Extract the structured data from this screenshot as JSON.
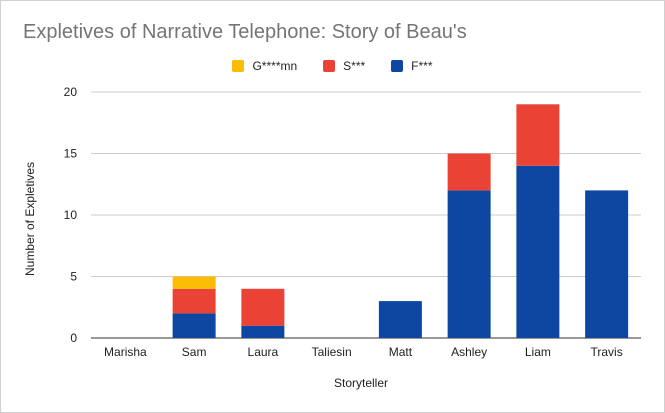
{
  "chart_data": {
    "type": "bar",
    "stacked": true,
    "title": "Expletives of Narrative Telephone: Story of Beau's",
    "xlabel": "Storyteller",
    "ylabel": "Number of Expletives",
    "categories": [
      "Marisha",
      "Sam",
      "Laura",
      "Taliesin",
      "Matt",
      "Ashley",
      "Liam",
      "Travis"
    ],
    "series": [
      {
        "name": "F***",
        "color": "#0d47a1",
        "values": [
          0,
          2,
          1,
          0,
          3,
          12,
          14,
          12
        ]
      },
      {
        "name": "S***",
        "color": "#ea4335",
        "values": [
          0,
          2,
          3,
          0,
          0,
          3,
          5,
          0
        ]
      },
      {
        "name": "G****mn",
        "color": "#fbbc04",
        "values": [
          0,
          1,
          0,
          0,
          0,
          0,
          0,
          0
        ]
      }
    ],
    "legend_order": [
      "G****mn",
      "S***",
      "F***"
    ],
    "ylim": [
      0,
      20
    ],
    "yticks": [
      0,
      5,
      10,
      15,
      20
    ],
    "grid": true,
    "legend_position": "top"
  }
}
